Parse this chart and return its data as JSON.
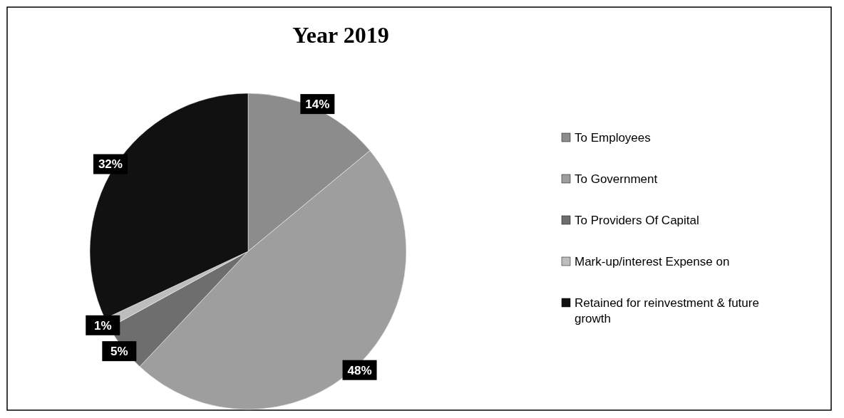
{
  "chart_data": {
    "type": "pie",
    "title": "Year 2019",
    "categories": [
      "To Employees",
      "To Government",
      "To Providers Of Capital",
      "Mark-up/interest Expense on",
      "Retained for reinvestment & future growth"
    ],
    "values": [
      14,
      48,
      5,
      1,
      32
    ],
    "colors": [
      "#8c8c8c",
      "#9e9e9e",
      "#6e6e6e",
      "#bdbdbd",
      "#111111"
    ],
    "value_labels": [
      "14%",
      "48%",
      "5%",
      "1%",
      "32%"
    ],
    "legend": "right"
  }
}
